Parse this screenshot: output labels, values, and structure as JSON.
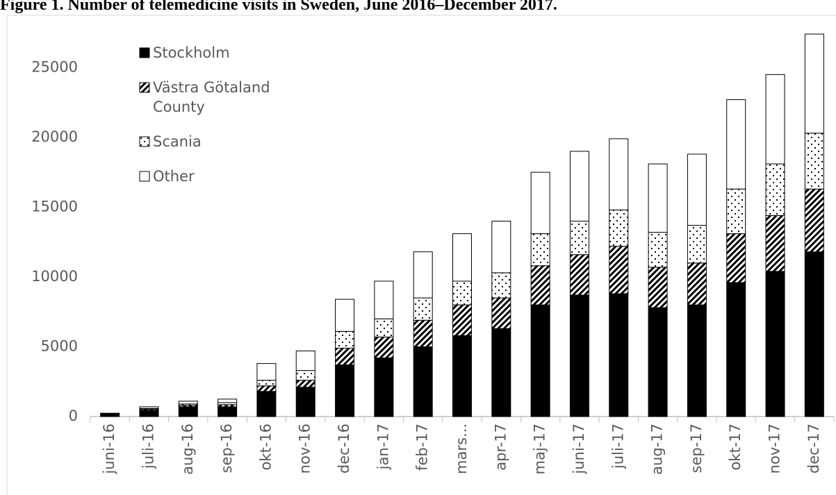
{
  "chart_data": {
    "type": "stacked_bar",
    "title": "Figure 1. Number of telemedicine visits in Sweden, June 2016–December 2017.",
    "categories": [
      "juni-16",
      "juli-16",
      "aug-16",
      "sep-16",
      "okt-16",
      "nov-16",
      "dec-16",
      "jan-17",
      "feb-17",
      "mars...",
      "apr-17",
      "maj-17",
      "juni-17",
      "juli-17",
      "aug-17",
      "sep-17",
      "okt-17",
      "nov-17",
      "dec-17"
    ],
    "series": [
      {
        "name": "Stockholm",
        "color": "#000000",
        "pattern": "solid",
        "values": [
          180,
          450,
          700,
          700,
          1800,
          2100,
          3700,
          4200,
          5000,
          5800,
          6300,
          8000,
          8700,
          8800,
          7800,
          8000,
          9600,
          10400,
          11800
        ]
      },
      {
        "name": "Västra Götaland County",
        "color": "#000000",
        "pattern": "hatch",
        "values": [
          20,
          80,
          100,
          150,
          400,
          500,
          1200,
          1500,
          1900,
          2200,
          2200,
          2800,
          2900,
          3400,
          2900,
          3000,
          3500,
          4000,
          4500
        ]
      },
      {
        "name": "Scania",
        "color": "#000000",
        "pattern": "dots",
        "values": [
          10,
          50,
          100,
          150,
          400,
          700,
          1200,
          1300,
          1600,
          1700,
          1800,
          2300,
          2400,
          2600,
          2500,
          2700,
          3200,
          3700,
          4000
        ]
      },
      {
        "name": "Other",
        "color": "#000000",
        "pattern": "none",
        "values": [
          30,
          120,
          200,
          250,
          1200,
          1400,
          2300,
          2700,
          3300,
          3400,
          3700,
          4400,
          5000,
          5100,
          4900,
          5100,
          6400,
          6400,
          7100
        ]
      }
    ],
    "ylim": [
      0,
      28000
    ],
    "yticks": [
      0,
      5000,
      10000,
      15000,
      20000,
      25000
    ],
    "grid": false,
    "legend": "upper left"
  }
}
